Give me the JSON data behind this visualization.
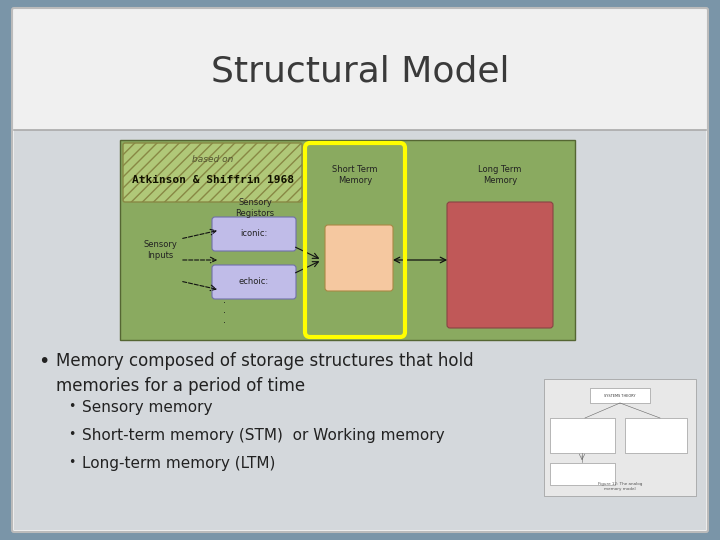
{
  "title": "Structural Model",
  "outer_bg": "#7a95a8",
  "slide_bg": "#f0f0f0",
  "title_bg": "#f0f0f0",
  "content_bg": "#d4d8dc",
  "title_text": "Structural Model",
  "title_color": "#3a3a3a",
  "title_fontsize": 26,
  "divider_color": "#aaaaaa",
  "diagram_bg": "#8aaa60",
  "diagram_border": "#556633",
  "label_box_bg": "#b0c878",
  "label_box_border": "#888844",
  "label_box_hatch": "///",
  "iconic_box_color": "#c0bce8",
  "echoic_box_color": "#c0bce8",
  "iconic_box_border": "#7070aa",
  "stm_box_color": "#f5c8a0",
  "stm_box_border": "#aa8844",
  "ltm_box_color": "#c05858",
  "ltm_box_border": "#884444",
  "yellow_color": "#ffff00",
  "arrow_color": "#111111",
  "text_color": "#222222",
  "bullet_main": "Memory composed of storage structures that hold\nmemories for a period of time",
  "sub_bullets": [
    "Sensory memory",
    "Short-term memory (STM)  or Working memory",
    "Long-term memory (LTM)"
  ],
  "bullet_fontsize": 12,
  "sub_bullet_fontsize": 11
}
